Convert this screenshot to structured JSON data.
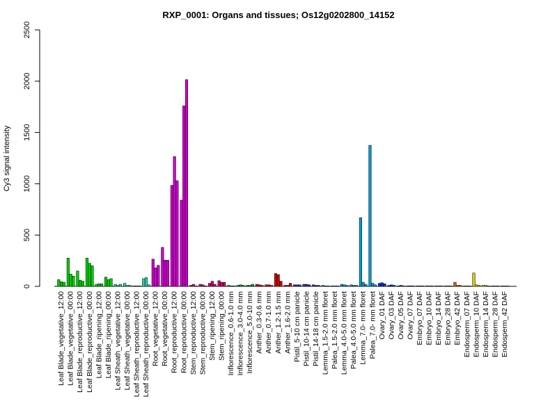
{
  "chart_data": {
    "type": "bar",
    "title": "RXP_0001: Organs and tissues; Os12g0202800_14152",
    "ylabel": "Cy3 signal intensity",
    "xlabel": "",
    "ylim": [
      0,
      2500
    ],
    "yticks": [
      0,
      500,
      1000,
      1500,
      2000,
      2500
    ],
    "grid": false,
    "legend": "none",
    "groups": [
      {
        "label": "Leaf Blade_vegetative_12:00",
        "color": "#00cc00",
        "values": [
          65,
          45,
          40
        ]
      },
      {
        "label": "Leaf Blade_vegetative_00:00",
        "color": "#00cc00",
        "values": [
          275,
          120,
          100
        ]
      },
      {
        "label": "Leaf Blade_reproductive_12:00",
        "color": "#00cc00",
        "values": [
          150,
          60,
          50
        ]
      },
      {
        "label": "Leaf Blade_reproductive_00:00",
        "color": "#00cc00",
        "values": [
          275,
          225,
          200
        ]
      },
      {
        "label": "Leaf Blade_ripening_12:00",
        "color": "#00cc00",
        "values": [
          20,
          25,
          25
        ]
      },
      {
        "label": "Leaf Blade_ripening_00:00",
        "color": "#00cc00",
        "values": [
          90,
          65,
          75
        ]
      },
      {
        "label": "Leaf Sheath_vegetative_12:00",
        "color": "#33ccaa",
        "values": [
          20,
          10,
          20
        ]
      },
      {
        "label": "Leaf Sheath_vegetative_00:00",
        "color": "#33ccaa",
        "values": [
          30,
          10,
          10
        ]
      },
      {
        "label": "Leaf Sheath_reproductive_12:00",
        "color": "#33ccaa",
        "values": [
          5,
          5,
          5
        ]
      },
      {
        "label": "Leaf Sheath_reproductive_00:00",
        "color": "#33ccaa",
        "values": [
          75,
          85,
          15
        ]
      },
      {
        "label": "Root_vegetative_12:00",
        "color": "#cc00cc",
        "values": [
          265,
          180,
          205
        ]
      },
      {
        "label": "Root_vegetative_00:00",
        "color": "#cc00cc",
        "values": [
          380,
          255,
          255
        ]
      },
      {
        "label": "Root_reproductive_12:00",
        "color": "#cc00cc",
        "values": [
          985,
          1265,
          1030
        ]
      },
      {
        "label": "Root_reproductive_00:00",
        "color": "#cc00cc",
        "values": [
          840,
          1760,
          2015
        ]
      },
      {
        "label": "Stem_reproductive_12:00",
        "color": "#cc0066",
        "values": [
          10,
          20,
          5
        ]
      },
      {
        "label": "Stem_reproductive_00:00",
        "color": "#cc0066",
        "values": [
          20,
          15,
          5
        ]
      },
      {
        "label": "Stem_ripening_12:00",
        "color": "#cc0066",
        "values": [
          30,
          50,
          20
        ]
      },
      {
        "label": "Stem_ripening_00:00",
        "color": "#cc0066",
        "values": [
          55,
          40,
          40
        ]
      },
      {
        "label": "Inflorescence_0.6-1.0 mm",
        "color": "#009933",
        "values": [
          10,
          5,
          5
        ]
      },
      {
        "label": "Inflorescence_3.0-4.0 mm",
        "color": "#009933",
        "values": [
          10,
          15,
          10
        ]
      },
      {
        "label": "Inflorescence_5.0-10 mm",
        "color": "#009933",
        "values": [
          10,
          10,
          20
        ]
      },
      {
        "label": "Anther_0.3-0.6 mm",
        "color": "#cc0000",
        "values": [
          20,
          15,
          10
        ]
      },
      {
        "label": "Anther_0.7-1.0 mm",
        "color": "#cc0000",
        "values": [
          15,
          15,
          10
        ]
      },
      {
        "label": "Anther_1.2-1.5 mm",
        "color": "#cc0000",
        "values": [
          125,
          115,
          50
        ]
      },
      {
        "label": "Anther_1.6-2.0 mm",
        "color": "#cc0000",
        "values": [
          10,
          10,
          30
        ]
      },
      {
        "label": "Pistil_5-10 cm panicle",
        "color": "#3333aa",
        "values": [
          15,
          15,
          15
        ]
      },
      {
        "label": "Pistil_10-14 cm panicle",
        "color": "#3333aa",
        "values": [
          20,
          20,
          15
        ]
      },
      {
        "label": "Pistil_14-18 cm panicle",
        "color": "#3333aa",
        "values": [
          15,
          10,
          10
        ]
      },
      {
        "label": "Lemma_1.5-2.0 mm floret",
        "color": "#0099cc",
        "values": [
          10,
          5,
          5
        ]
      },
      {
        "label": "Palea_1.5-2.0 mm floret",
        "color": "#0099cc",
        "values": [
          5,
          5,
          5
        ]
      },
      {
        "label": "Lemma_4.0-5.0 mm floret",
        "color": "#0099cc",
        "values": [
          20,
          15,
          10
        ]
      },
      {
        "label": "Palea_4.0-5.0 mm floret",
        "color": "#0099cc",
        "values": [
          15,
          10,
          10
        ]
      },
      {
        "label": "Lemma_7.0- mm floret",
        "color": "#0099cc",
        "values": [
          670,
          40,
          20
        ]
      },
      {
        "label": "Palea_7.0- mm floret",
        "color": "#0099cc",
        "values": [
          1375,
          30,
          15
        ]
      },
      {
        "label": "Ovary_01 DAF",
        "color": "#0033cc",
        "values": [
          30,
          35,
          25
        ]
      },
      {
        "label": "Ovary_03 DAF",
        "color": "#0033cc",
        "values": [
          10,
          15,
          10
        ]
      },
      {
        "label": "Ovary_05 DAF",
        "color": "#0033cc",
        "values": [
          5,
          10,
          5
        ]
      },
      {
        "label": "Ovary_07 DAF",
        "color": "#0033cc",
        "values": [
          5,
          5,
          5
        ]
      },
      {
        "label": "Embryo_07 DAF",
        "color": "#cc6600",
        "values": [
          5,
          5,
          5
        ]
      },
      {
        "label": "Embryo_10 DAF",
        "color": "#cc6600",
        "values": [
          5,
          5,
          5
        ]
      },
      {
        "label": "Embryo_14 DAF",
        "color": "#cc6600",
        "values": [
          5,
          5,
          5
        ]
      },
      {
        "label": "Embryo_28 DAF",
        "color": "#cc6600",
        "values": [
          5,
          5,
          5
        ]
      },
      {
        "label": "Embryo_42 DAF",
        "color": "#cc6600",
        "values": [
          40,
          10,
          10
        ]
      },
      {
        "label": "Endosperm_07 DAF",
        "color": "#cccc00",
        "values": [
          5,
          5,
          5
        ]
      },
      {
        "label": "Endosperm_10 DAF",
        "color": "#cccc00",
        "values": [
          130,
          15,
          10
        ]
      },
      {
        "label": "Endosperm_14 DAF",
        "color": "#cccc00",
        "values": [
          10,
          10,
          5
        ]
      },
      {
        "label": "Endosperm_28 DAF",
        "color": "#cccc00",
        "values": [
          5,
          5,
          5
        ]
      },
      {
        "label": "Endosperm_42 DAF",
        "color": "#cccc00",
        "values": [
          5,
          5,
          5
        ]
      }
    ]
  }
}
